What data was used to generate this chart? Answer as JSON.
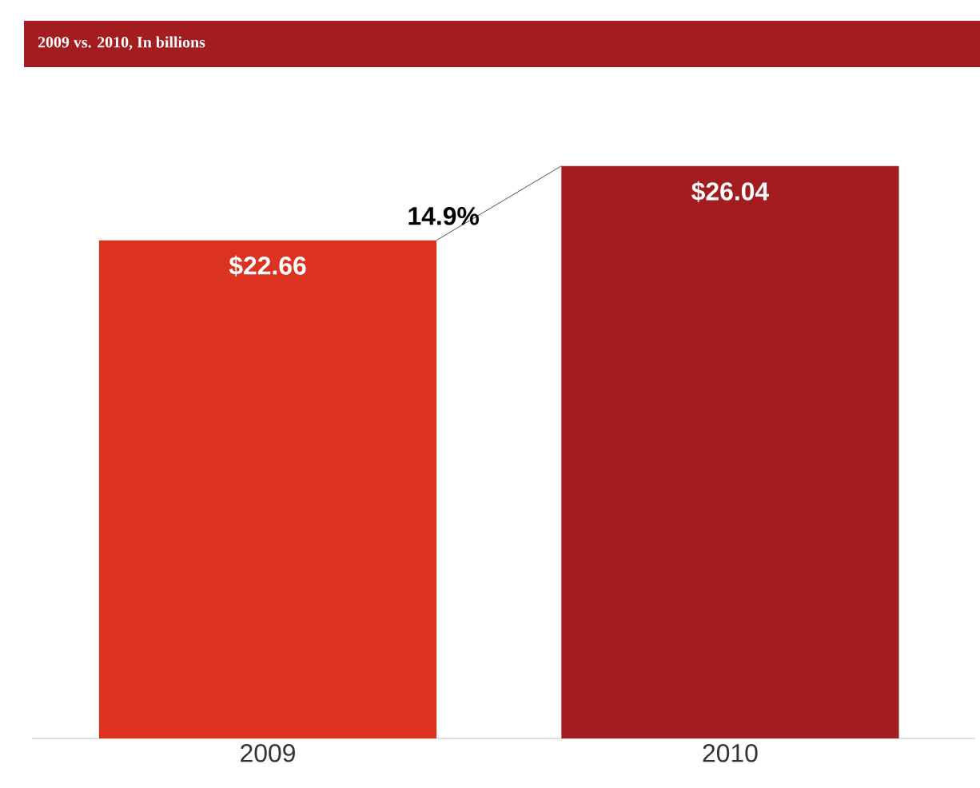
{
  "chart_data": {
    "type": "bar",
    "title": "2009 vs. 2010, In billions",
    "categories": [
      "2009",
      "2010"
    ],
    "values": [
      22.66,
      26.04
    ],
    "value_labels": [
      "$22.66",
      "$26.04"
    ],
    "colors": [
      "#dc3220",
      "#a31c20"
    ],
    "tick_labels": "x",
    "annotations": [
      "14.9%"
    ]
  }
}
